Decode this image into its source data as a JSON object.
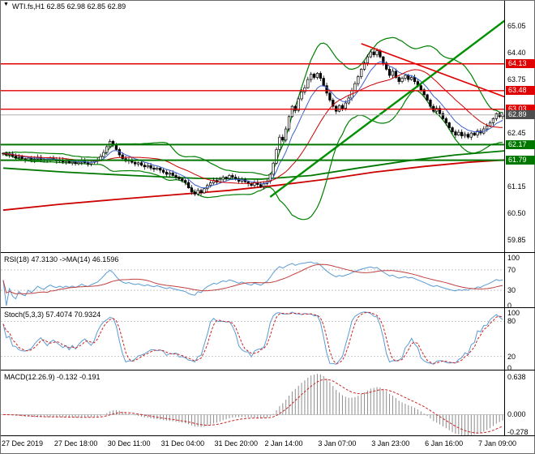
{
  "window": {
    "title": "WTI.fs,H1 62.85 62.98 62.85 62.89",
    "collapse_icon": "▼"
  },
  "colors": {
    "candle_up": "#ffffff",
    "candle_down": "#000000",
    "candle_outline": "#000000",
    "resistance": "#e00000",
    "support": "#007800",
    "bands": "#008000",
    "ma_fast_blue": "#3a5fcd",
    "ma_mid_red": "#cc0000",
    "trend_up_green": "#009000",
    "trend_down_red": "#e00000",
    "slow_ma_red": "#cc0000",
    "slow_ma_green": "#007800",
    "current_price_line": "#b0b0b0",
    "current_price_badge": "#4d4d4d",
    "grid_dashed": "#c8c8c8",
    "panel_border": "#000000"
  },
  "chart_data": [
    {
      "type": "candlestick",
      "symbol": "WTI.fs",
      "timeframe": "H1",
      "last_ohlc": {
        "open": 62.85,
        "high": 62.98,
        "low": 62.85,
        "close": 62.89
      },
      "ylim": [
        59.56,
        65.66
      ],
      "yticks": [
        65.05,
        64.4,
        63.75,
        62.45,
        61.15,
        60.5,
        59.85
      ],
      "levels": [
        {
          "price": 64.13,
          "color": "#e00000",
          "width": 1.4
        },
        {
          "price": 63.48,
          "color": "#e00000",
          "width": 1.4
        },
        {
          "price": 63.03,
          "color": "#e00000",
          "width": 1.4
        },
        {
          "price": 62.17,
          "color": "#007800",
          "width": 2
        },
        {
          "price": 61.79,
          "color": "#007800",
          "width": 2
        }
      ],
      "current": {
        "price": 62.89
      },
      "bollinger": {
        "period": 20,
        "deviation": 2
      },
      "trendlines": [
        {
          "name": "ascending-channel-line",
          "color": "#009000",
          "width": 2.4,
          "points": [
            [
              85,
              60.9
            ],
            [
              167,
              65.6
            ]
          ]
        },
        {
          "name": "descending-resistance-line",
          "color": "#e00000",
          "width": 1.6,
          "points": [
            [
              114,
              64.62
            ],
            [
              166,
              63.15
            ]
          ]
        }
      ],
      "slow_lines": [
        {
          "name": "long-term-ma-red",
          "color": "#cc0000",
          "width": 1.8,
          "points": [
            [
              0,
              60.58
            ],
            [
              18,
              60.72
            ],
            [
              36,
              60.84
            ],
            [
              54,
              60.95
            ],
            [
              72,
              61.06
            ],
            [
              87,
              61.18
            ],
            [
              103,
              61.33
            ],
            [
              118,
              61.5
            ],
            [
              134,
              61.64
            ],
            [
              148,
              61.74
            ],
            [
              160,
              61.8
            ]
          ]
        },
        {
          "name": "long-term-ma-green",
          "color": "#007800",
          "width": 1.8,
          "points": [
            [
              0,
              61.6
            ],
            [
              20,
              61.5
            ],
            [
              41,
              61.42
            ],
            [
              62,
              61.35
            ],
            [
              82,
              61.33
            ],
            [
              98,
              61.42
            ],
            [
              113,
              61.6
            ],
            [
              129,
              61.78
            ],
            [
              144,
              61.92
            ],
            [
              160,
              62.02
            ]
          ]
        }
      ],
      "closes": [
        61.96,
        61.92,
        61.94,
        61.89,
        61.85,
        61.88,
        61.83,
        61.8,
        61.84,
        61.79,
        61.82,
        61.86,
        61.81,
        61.78,
        61.82,
        61.85,
        61.8,
        61.77,
        61.8,
        61.75,
        61.78,
        61.73,
        61.76,
        61.71,
        61.74,
        61.78,
        61.73,
        61.7,
        61.74,
        61.77,
        61.8,
        61.88,
        61.98,
        62.12,
        62.25,
        62.18,
        62.05,
        61.92,
        61.83,
        61.77,
        61.8,
        61.74,
        61.7,
        61.73,
        61.67,
        61.63,
        61.66,
        61.6,
        61.57,
        61.6,
        61.55,
        61.5,
        61.45,
        61.48,
        61.42,
        61.38,
        61.34,
        61.3,
        61.25,
        61.12,
        61.02,
        60.97,
        61.06,
        61.0,
        61.1,
        61.18,
        61.24,
        61.3,
        61.26,
        61.33,
        61.38,
        61.35,
        61.42,
        61.38,
        61.33,
        61.28,
        61.32,
        61.27,
        61.22,
        61.18,
        61.25,
        61.2,
        61.15,
        61.22,
        61.28,
        61.45,
        61.72,
        62.05,
        62.35,
        62.28,
        62.55,
        62.85,
        63.1,
        63.0,
        63.28,
        63.45,
        63.55,
        63.75,
        63.88,
        63.8,
        63.9,
        63.78,
        63.6,
        63.42,
        63.25,
        63.1,
        62.98,
        63.12,
        63.05,
        63.18,
        63.3,
        63.48,
        63.65,
        63.82,
        64.0,
        64.15,
        64.3,
        64.42,
        64.35,
        64.45,
        64.3,
        64.15,
        64.0,
        63.85,
        63.95,
        63.8,
        63.7,
        63.78,
        63.85,
        63.75,
        63.8,
        63.7,
        63.6,
        63.5,
        63.38,
        63.25,
        63.1,
        62.98,
        63.05,
        62.92,
        62.8,
        62.7,
        62.58,
        62.48,
        62.4,
        62.47,
        62.38,
        62.42,
        62.35,
        62.45,
        62.4,
        62.5,
        62.45,
        62.55,
        62.62,
        62.7,
        62.8,
        62.92,
        62.85,
        62.89
      ],
      "xlabels": [
        {
          "text": "27 Dec 2019",
          "bar": 0
        },
        {
          "text": "27 Dec 18:00",
          "bar": 17
        },
        {
          "text": "30 Dec 11:00",
          "bar": 34
        },
        {
          "text": "31 Dec 04:00",
          "bar": 51
        },
        {
          "text": "31 Dec 20:00",
          "bar": 68
        },
        {
          "text": "2 Jan 14:00",
          "bar": 84
        },
        {
          "text": "3 Jan 07:00",
          "bar": 101
        },
        {
          "text": "3 Jan 23:00",
          "bar": 118
        },
        {
          "text": "6 Jan 16:00",
          "bar": 135
        },
        {
          "text": "7 Jan 09:00",
          "bar": 152
        }
      ]
    },
    {
      "type": "line",
      "name": "RSI",
      "label": "RSI(18) 47.3130 ->MA(14) 46.1596",
      "period": 18,
      "ma_period": 14,
      "values_shown": {
        "rsi": 47.313,
        "ma": 46.1596
      },
      "ylim": [
        0,
        100
      ],
      "yticks": [
        100,
        70,
        30,
        0
      ],
      "dashed": [
        70,
        30
      ],
      "colors": {
        "main": "#5a9bd4",
        "signal": "#c04040"
      }
    },
    {
      "type": "line",
      "name": "Stochastic",
      "label": "Stoch(5,3,3) 57.4074 70.9324",
      "k": 5,
      "d": 3,
      "slowing": 3,
      "values_shown": {
        "main": 57.4074,
        "signal": 70.9324
      },
      "ylim": [
        0,
        100
      ],
      "yticks": [
        100,
        80,
        20,
        0
      ],
      "dashed": [
        80,
        20
      ],
      "colors": {
        "main": "#5a9bd4",
        "signal": "#cc2222"
      }
    },
    {
      "type": "histogram+line",
      "name": "MACD",
      "label": "MACD(12.26.9) -0.132 -0.191",
      "fast": 12,
      "slow": 26,
      "signal": 9,
      "values_shown": {
        "macd": -0.132,
        "signal": -0.191
      },
      "ylim": [
        -0.3,
        0.67
      ],
      "yticks": [
        0.638,
        0.0,
        -0.278
      ],
      "colors": {
        "hist": "#8c8c8c",
        "signal": "#cc2222"
      }
    }
  ]
}
